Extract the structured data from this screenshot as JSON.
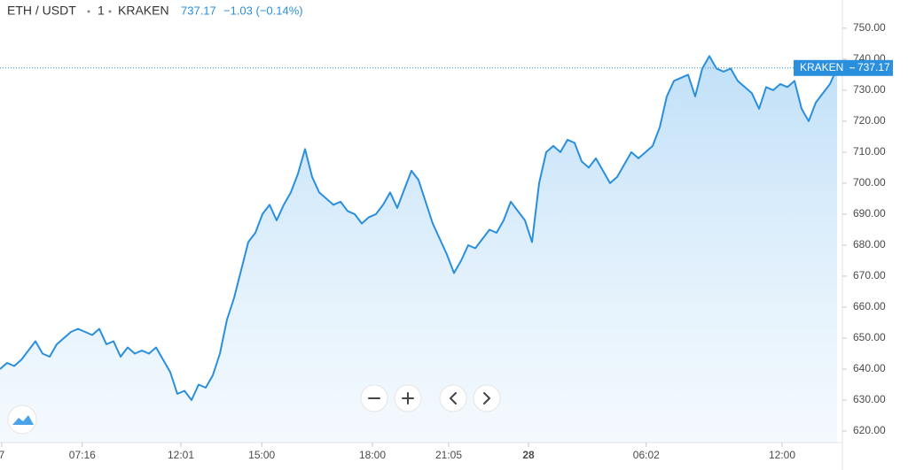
{
  "chart_data": {
    "type": "area",
    "symbol": "ETH / USDT",
    "interval": "1",
    "exchange": "KRAKEN",
    "last_price": 737.17,
    "change_label": "−1.03 (−0.14%)",
    "series": [
      {
        "name": "ETH / USDT",
        "color": "#2a8fdd",
        "values": [
          640,
          642,
          641,
          643,
          646,
          649,
          645,
          644,
          648,
          650,
          652,
          653,
          652,
          651,
          653,
          648,
          649,
          644,
          647,
          645,
          646,
          645,
          647,
          643,
          639,
          632,
          633,
          630,
          635,
          634,
          638,
          645,
          656,
          663,
          672,
          681,
          684,
          690,
          693,
          688,
          693,
          697,
          703,
          711,
          702,
          697,
          695,
          693,
          694,
          691,
          690,
          687,
          689,
          690,
          693,
          697,
          692,
          698,
          704,
          701,
          694,
          687,
          682,
          677,
          671,
          675,
          680,
          679,
          682,
          685,
          684,
          688,
          694,
          691,
          688,
          681,
          700,
          710,
          712,
          710,
          714,
          713,
          707,
          705,
          708,
          704,
          700,
          702,
          706,
          710,
          708,
          710,
          712,
          718,
          728,
          733,
          734,
          735,
          728,
          737,
          741,
          737,
          736,
          737,
          733,
          731,
          729,
          724,
          731,
          730,
          732,
          731,
          733,
          724,
          720,
          726,
          729,
          732,
          737.17
        ]
      }
    ],
    "xlim": [
      0,
      118.5
    ],
    "xticks": [
      {
        "value": 0.25,
        "label": "7"
      },
      {
        "value": 11.6,
        "label": "07:16"
      },
      {
        "value": 25.5,
        "label": "12:01"
      },
      {
        "value": 36.9,
        "label": "15:00"
      },
      {
        "value": 52.5,
        "label": "18:00"
      },
      {
        "value": 63.25,
        "label": "21:05"
      },
      {
        "value": 74.5,
        "label": "28"
      },
      {
        "value": 91.1,
        "label": "06:02"
      },
      {
        "value": 110.25,
        "label": "12:00"
      }
    ],
    "ylim": [
      616.3,
      759.1
    ],
    "yticks": [
      {
        "value": 620,
        "label": "620.00"
      },
      {
        "value": 630,
        "label": "630.00"
      },
      {
        "value": 640,
        "label": "640.00"
      },
      {
        "value": 650,
        "label": "650.00"
      },
      {
        "value": 660,
        "label": "660.00"
      },
      {
        "value": 670,
        "label": "670.00"
      },
      {
        "value": 680,
        "label": "680.00"
      },
      {
        "value": 690,
        "label": "690.00"
      },
      {
        "value": 700,
        "label": "700.00"
      },
      {
        "value": 710,
        "label": "710.00"
      },
      {
        "value": 720,
        "label": "720.00"
      },
      {
        "value": 730,
        "label": "730.00"
      },
      {
        "value": 740,
        "label": "740.00"
      },
      {
        "value": 750,
        "label": "750.00"
      }
    ]
  }
}
